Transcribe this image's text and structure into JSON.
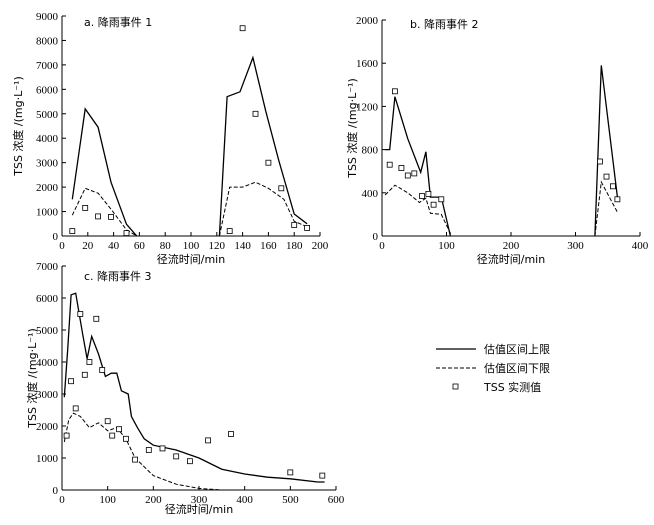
{
  "legend": [
    {
      "key": "upper",
      "label": "估值区间上限"
    },
    {
      "key": "lower",
      "label": "估值区间下限"
    },
    {
      "key": "observed",
      "label": "TSS 实测值"
    }
  ],
  "chart_data": [
    {
      "type": "line",
      "title": "a. 降雨事件 1",
      "xlabel": "径流时间/min",
      "ylabel": "TSS 浓度 /(mg·L⁻¹)",
      "xlim": [
        0,
        200
      ],
      "ylim": [
        0,
        9000
      ],
      "xticks": [
        0,
        20,
        40,
        60,
        80,
        100,
        120,
        140,
        160,
        180,
        200
      ],
      "yticks": [
        0,
        1000,
        2000,
        3000,
        4000,
        5000,
        6000,
        7000,
        8000,
        9000
      ],
      "series": [
        {
          "name": "估值区间上限",
          "key": "upper",
          "segments": [
            [
              [
                8,
                1500
              ],
              [
                18,
                5200
              ],
              [
                28,
                4450
              ],
              [
                38,
                2200
              ],
              [
                50,
                480
              ],
              [
                58,
                0
              ]
            ],
            [
              [
                122,
                0
              ],
              [
                128,
                5700
              ],
              [
                138,
                5900
              ],
              [
                148,
                7300
              ],
              [
                158,
                5100
              ],
              [
                168,
                3100
              ],
              [
                180,
                900
              ],
              [
                190,
                500
              ]
            ]
          ]
        },
        {
          "name": "估值区间下限",
          "key": "lower",
          "segments": [
            [
              [
                8,
                850
              ],
              [
                18,
                1950
              ],
              [
                28,
                1750
              ],
              [
                38,
                1100
              ],
              [
                50,
                250
              ],
              [
                58,
                0
              ]
            ],
            [
              [
                122,
                0
              ],
              [
                130,
                2000
              ],
              [
                140,
                2000
              ],
              [
                150,
                2200
              ],
              [
                160,
                1950
              ],
              [
                172,
                1500
              ],
              [
                180,
                600
              ],
              [
                190,
                380
              ]
            ]
          ]
        },
        {
          "name": "TSS 实测值",
          "key": "observed",
          "points": [
            [
              8,
              200
            ],
            [
              18,
              1150
            ],
            [
              28,
              800
            ],
            [
              38,
              780
            ],
            [
              50,
              120
            ],
            [
              130,
              200
            ],
            [
              140,
              8500
            ],
            [
              150,
              5000
            ],
            [
              160,
              3000
            ],
            [
              170,
              1950
            ],
            [
              180,
              450
            ],
            [
              190,
              330
            ]
          ]
        }
      ]
    },
    {
      "type": "line",
      "title": "b. 降雨事件 2",
      "xlabel": "径流时间/min",
      "ylabel": "TSS 浓度 /(mg·L⁻¹)",
      "xlim": [
        0,
        400
      ],
      "ylim": [
        0,
        2000
      ],
      "xticks": [
        0,
        100,
        200,
        300,
        400
      ],
      "yticks": [
        0,
        400,
        800,
        1200,
        1600,
        2000
      ],
      "series": [
        {
          "name": "估值区间上限",
          "key": "upper",
          "segments": [
            [
              [
                5,
                800
              ],
              [
                12,
                800
              ],
              [
                20,
                1290
              ],
              [
                40,
                900
              ],
              [
                60,
                590
              ],
              [
                68,
                780
              ],
              [
                75,
                360
              ],
              [
                92,
                360
              ],
              [
                106,
                0
              ]
            ],
            [
              [
                330,
                0
              ],
              [
                340,
                1580
              ],
              [
                365,
                360
              ]
            ]
          ]
        },
        {
          "name": "估值区间下限",
          "key": "lower",
          "segments": [
            [
              [
                5,
                380
              ],
              [
                20,
                470
              ],
              [
                40,
                400
              ],
              [
                58,
                310
              ],
              [
                68,
                350
              ],
              [
                75,
                210
              ],
              [
                92,
                200
              ],
              [
                108,
                0
              ]
            ],
            [
              [
                330,
                0
              ],
              [
                340,
                500
              ],
              [
                365,
                220
              ]
            ]
          ]
        },
        {
          "name": "TSS 实测值",
          "key": "observed",
          "points": [
            [
              12,
              660
            ],
            [
              20,
              1340
            ],
            [
              30,
              630
            ],
            [
              40,
              560
            ],
            [
              50,
              580
            ],
            [
              62,
              370
            ],
            [
              72,
              390
            ],
            [
              80,
              290
            ],
            [
              92,
              340
            ],
            [
              338,
              690
            ],
            [
              348,
              550
            ],
            [
              358,
              460
            ],
            [
              365,
              340
            ]
          ]
        }
      ]
    },
    {
      "type": "line",
      "title": "c. 降雨事件 3",
      "xlabel": "径流时间/min",
      "ylabel": "TSS 浓度 /(mg·L⁻¹)",
      "xlim": [
        0,
        600
      ],
      "ylim": [
        0,
        7000
      ],
      "xticks": [
        0,
        100,
        200,
        300,
        400,
        500,
        600
      ],
      "yticks": [
        0,
        1000,
        2000,
        3000,
        4000,
        5000,
        6000,
        7000
      ],
      "series": [
        {
          "name": "估值区间上限",
          "key": "upper",
          "segments": [
            [
              [
                5,
                2900
              ],
              [
                12,
                4300
              ],
              [
                20,
                6100
              ],
              [
                30,
                6150
              ],
              [
                45,
                4900
              ],
              [
                55,
                4100
              ],
              [
                65,
                4800
              ],
              [
                80,
                4250
              ],
              [
                95,
                3550
              ],
              [
                108,
                3650
              ],
              [
                120,
                3650
              ],
              [
                130,
                3100
              ],
              [
                145,
                3000
              ],
              [
                152,
                2300
              ],
              [
                165,
                1950
              ],
              [
                180,
                1600
              ],
              [
                200,
                1400
              ],
              [
                250,
                1250
              ],
              [
                300,
                1000
              ],
              [
                350,
                650
              ],
              [
                400,
                500
              ],
              [
                450,
                400
              ],
              [
                500,
                350
              ],
              [
                560,
                250
              ],
              [
                575,
                250
              ]
            ]
          ]
        },
        {
          "name": "估值区间下限",
          "key": "lower",
          "segments": [
            [
              [
                5,
                1500
              ],
              [
                15,
                2200
              ],
              [
                25,
                2400
              ],
              [
                40,
                2300
              ],
              [
                60,
                1950
              ],
              [
                80,
                2100
              ],
              [
                100,
                1850
              ],
              [
                120,
                1950
              ],
              [
                140,
                1600
              ],
              [
                160,
                1000
              ],
              [
                200,
                450
              ],
              [
                250,
                180
              ],
              [
                300,
                50
              ],
              [
                350,
                0
              ],
              [
                575,
                0
              ]
            ]
          ]
        },
        {
          "name": "TSS 实测值",
          "key": "observed",
          "points": [
            [
              10,
              1700
            ],
            [
              20,
              3400
            ],
            [
              30,
              2550
            ],
            [
              40,
              5500
            ],
            [
              50,
              3600
            ],
            [
              60,
              4000
            ],
            [
              75,
              5350
            ],
            [
              88,
              3750
            ],
            [
              100,
              2150
            ],
            [
              110,
              1700
            ],
            [
              125,
              1900
            ],
            [
              140,
              1600
            ],
            [
              160,
              950
            ],
            [
              190,
              1250
            ],
            [
              220,
              1300
            ],
            [
              250,
              1050
            ],
            [
              280,
              900
            ],
            [
              320,
              1550
            ],
            [
              370,
              1750
            ],
            [
              500,
              550
            ],
            [
              570,
              450
            ]
          ]
        }
      ]
    }
  ]
}
